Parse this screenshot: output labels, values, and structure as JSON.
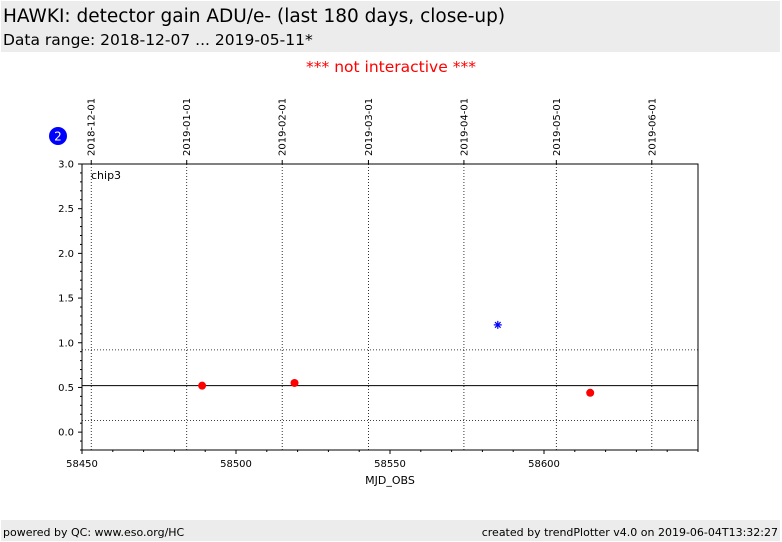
{
  "header": {
    "title": "HAWKI: detector gain ADU/e- (last 180 days, close-up)",
    "subtitle": "Data range: 2018-12-07 ... 2019-05-11*"
  },
  "notice": "*** not interactive ***",
  "badge": "2",
  "footer": {
    "left": "powered by QC: www.eso.org/HC",
    "right": "created by trendPlotter v4.0 on 2019-06-04T13:32:27"
  },
  "colors": {
    "points": "#ff0000",
    "outlier": "#0000ff",
    "badge": "#0000ff",
    "notice": "#ff0000",
    "panel": "#ececec"
  },
  "chart_data": {
    "type": "scatter",
    "panel_label": "chip3",
    "xlabel": "MJD_OBS",
    "ylabel": "",
    "xlim": [
      58450,
      58650
    ],
    "ylim": [
      -0.2,
      3.0
    ],
    "x_ticks": [
      58450,
      58500,
      58550,
      58600
    ],
    "x_tick_labels": [
      "58450",
      "58500",
      "58550",
      "58600"
    ],
    "y_ticks": [
      0.0,
      0.5,
      1.0,
      1.5,
      2.0,
      2.5,
      3.0
    ],
    "y_tick_labels": [
      "0.0",
      "0.5",
      "1.0",
      "1.5",
      "2.0",
      "2.5",
      "3.0"
    ],
    "top_axis": {
      "ticks": [
        58453,
        58484,
        58515,
        58543,
        58574,
        58604,
        58635
      ],
      "labels": [
        "2018-12-01",
        "2019-01-01",
        "2019-02-01",
        "2019-03-01",
        "2019-04-01",
        "2019-05-01",
        "2019-06-01"
      ]
    },
    "grid": true,
    "reference_line": 0.52,
    "threshold_lines": [
      0.13,
      0.92
    ],
    "series": [
      {
        "marker": "circle",
        "color": "#ff0000",
        "x": [
          58489,
          58519,
          58615
        ],
        "y": [
          0.52,
          0.55,
          0.44
        ]
      },
      {
        "marker": "star",
        "color": "#0000ff",
        "x": [
          58585
        ],
        "y": [
          1.2
        ]
      }
    ]
  }
}
